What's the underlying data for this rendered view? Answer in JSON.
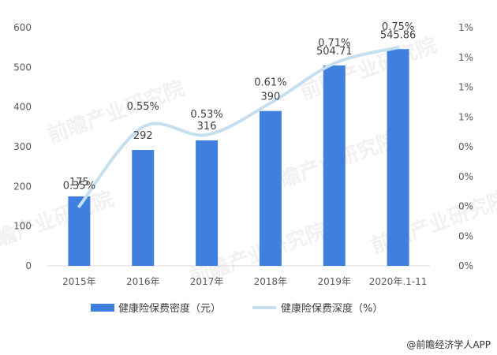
{
  "chart_data": {
    "type": "bar",
    "categories": [
      "2015年",
      "2016年",
      "2017年",
      "2018年",
      "2019年",
      "2020年.1-11"
    ],
    "series": [
      {
        "name": "健康险保费密度（元）",
        "type": "bar",
        "axis": "left",
        "values": [
          175,
          292,
          316,
          390,
          504.71,
          545.86
        ],
        "labels": [
          "175",
          "292",
          "316",
          "390",
          "504.71",
          "545.86"
        ]
      },
      {
        "name": "健康险保费深度（%）",
        "type": "line",
        "axis": "right",
        "smooth": true,
        "values": [
          0.35,
          0.55,
          0.53,
          0.61,
          0.71,
          0.75
        ],
        "labels": [
          "0.35%",
          "0.55%",
          "0.53%",
          "0.61%",
          "0.71%",
          "0.75%"
        ]
      }
    ],
    "ylim_left": [
      0,
      600
    ],
    "yticks_left": [
      "0",
      "100",
      "200",
      "300",
      "400",
      "500",
      "600"
    ],
    "ylim_right": [
      0.2,
      0.8
    ],
    "yticks_right": [
      "0%",
      "0%",
      "0%",
      "0%",
      "0%",
      "1%",
      "1%",
      "1%",
      "1%"
    ],
    "grid": false,
    "legend_position": "bottom",
    "colors": {
      "bar": "#3f80de",
      "line": "#c5dff0"
    }
  },
  "credit": "@前瞻经济学人APP",
  "watermark": {
    "text": "前瞻产业研究院"
  }
}
